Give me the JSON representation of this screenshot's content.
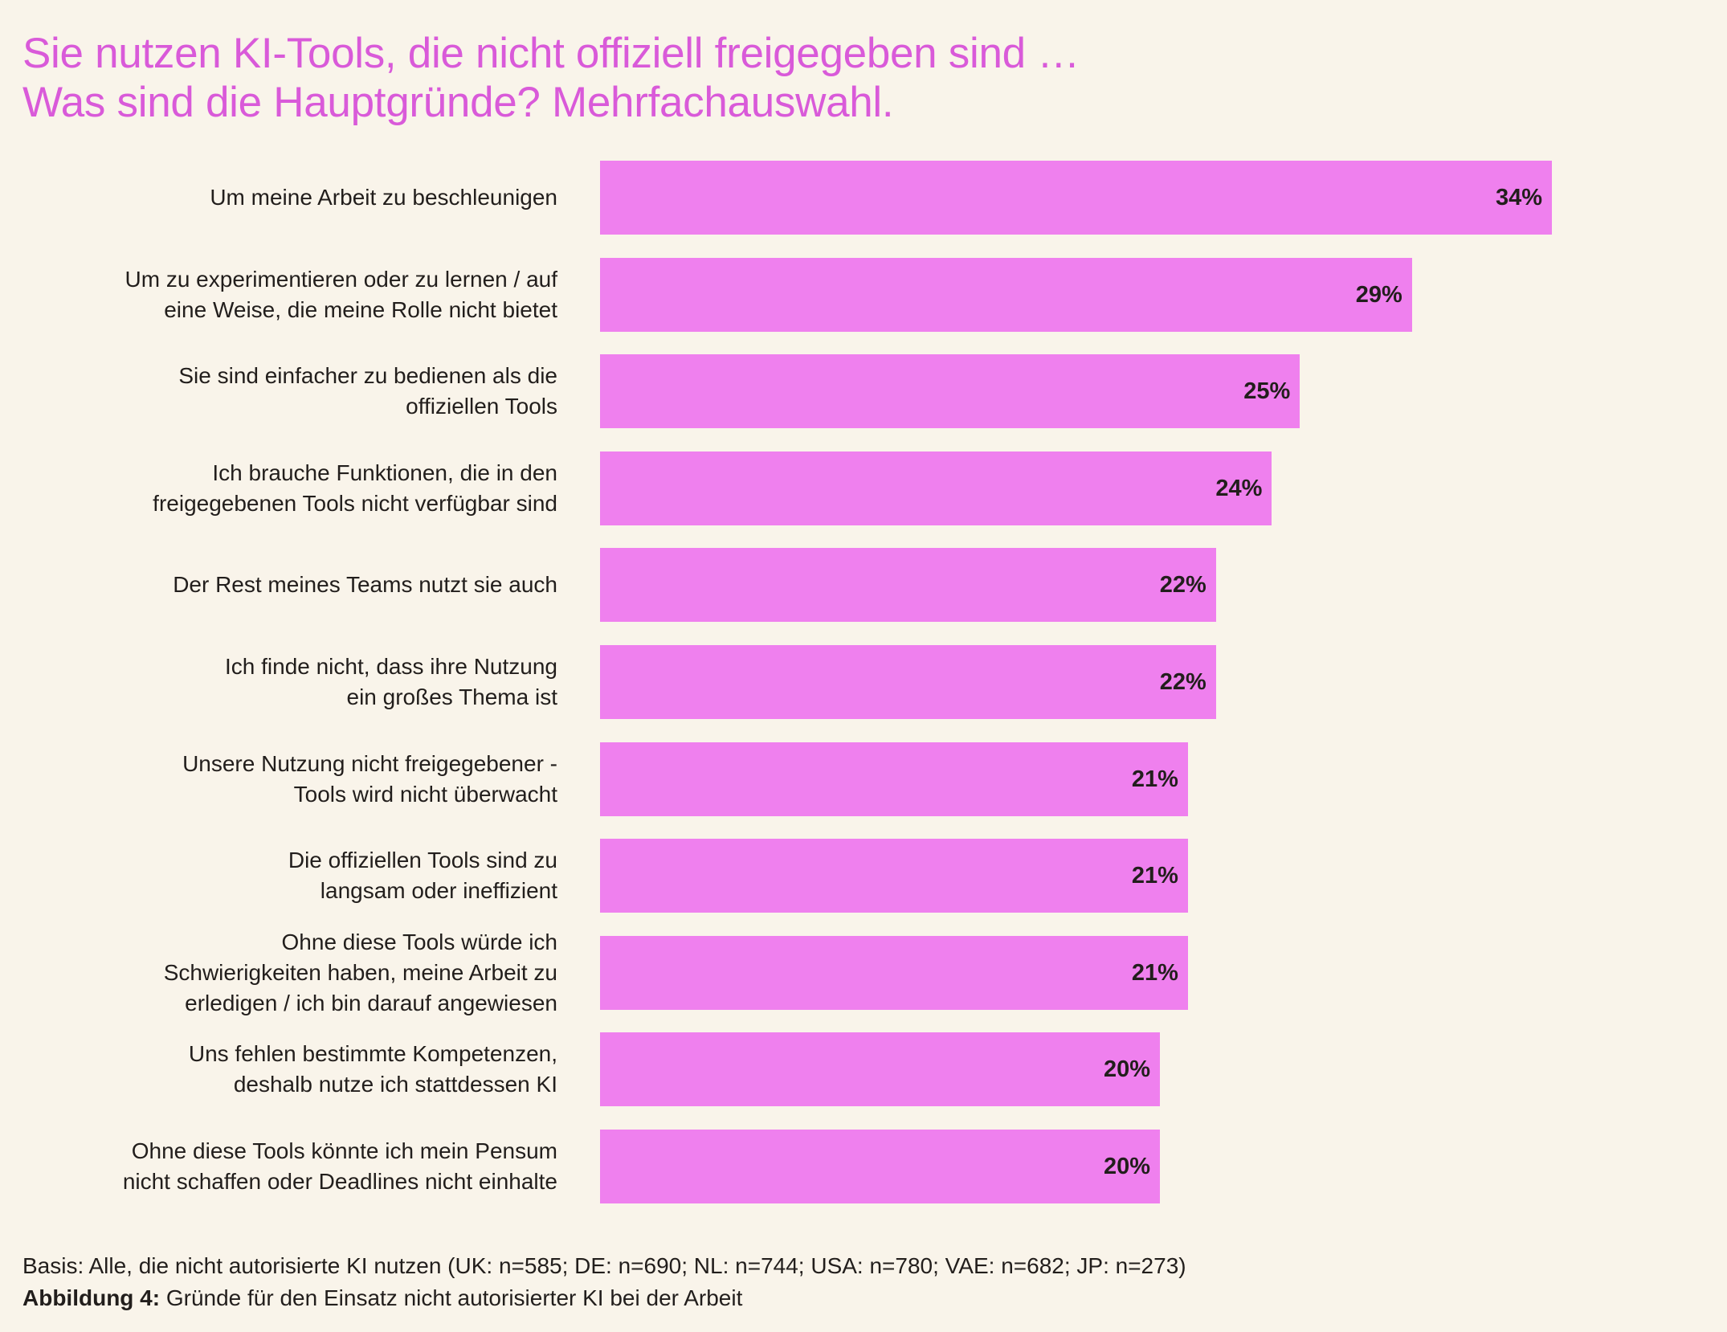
{
  "title": {
    "line1": "Sie nutzen KI-Tools, die nicht offiziell freigegeben sind …",
    "line2": "Was sind die Hauptgründe? Mehrfachauswahl."
  },
  "colors": {
    "background": "#f9f4ea",
    "title": "#d95ad9",
    "bar": "#ef80ee",
    "text": "#221e1c"
  },
  "chart_data": {
    "type": "bar",
    "orientation": "horizontal",
    "title": "Sie nutzen KI-Tools, die nicht offiziell freigegeben sind … Was sind die Hauptgründe? Mehrfachauswahl.",
    "xlabel": "",
    "ylabel": "",
    "unit": "%",
    "xlim": [
      0,
      34
    ],
    "grid": false,
    "legend": "none",
    "categories": [
      "Um meine Arbeit zu beschleunigen",
      "Um zu experimentieren oder zu lernen / auf\neine Weise, die meine Rolle nicht bietet",
      "Sie sind einfacher zu bedienen als die\noffiziellen Tools",
      "Ich brauche Funktionen, die in den\nfreigegebenen Tools nicht verfügbar sind",
      "Der Rest meines Teams nutzt sie auch",
      "Ich finde nicht, dass ihre Nutzung\nein großes Thema ist",
      "Unsere Nutzung nicht freigegebener -\nTools wird nicht überwacht",
      "Die offiziellen Tools sind zu\nlangsam oder ineffizient",
      "Ohne diese Tools würde ich\nSchwierigkeiten haben, meine Arbeit zu\nerledigen / ich bin darauf angewiesen",
      "Uns fehlen bestimmte Kompetenzen,\ndeshalb nutze ich stattdessen KI",
      "Ohne diese Tools könnte ich mein Pensum\nnicht schaffen oder Deadlines nicht einhalte"
    ],
    "values": [
      34,
      29,
      25,
      24,
      22,
      22,
      21,
      21,
      21,
      20,
      20
    ],
    "value_labels": [
      "34%",
      "29%",
      "25%",
      "24%",
      "22%",
      "22%",
      "21%",
      "21%",
      "21%",
      "20%",
      "20%"
    ]
  },
  "footer": {
    "basis": "Basis: Alle, die nicht autorisierte KI nutzen (UK: n=585; DE: n=690; NL: n=744; USA: n=780; VAE: n=682; JP: n=273)",
    "figure_label": "Abbildung 4:",
    "figure_caption": " Gründe für den Einsatz nicht autorisierter KI bei der Arbeit"
  }
}
